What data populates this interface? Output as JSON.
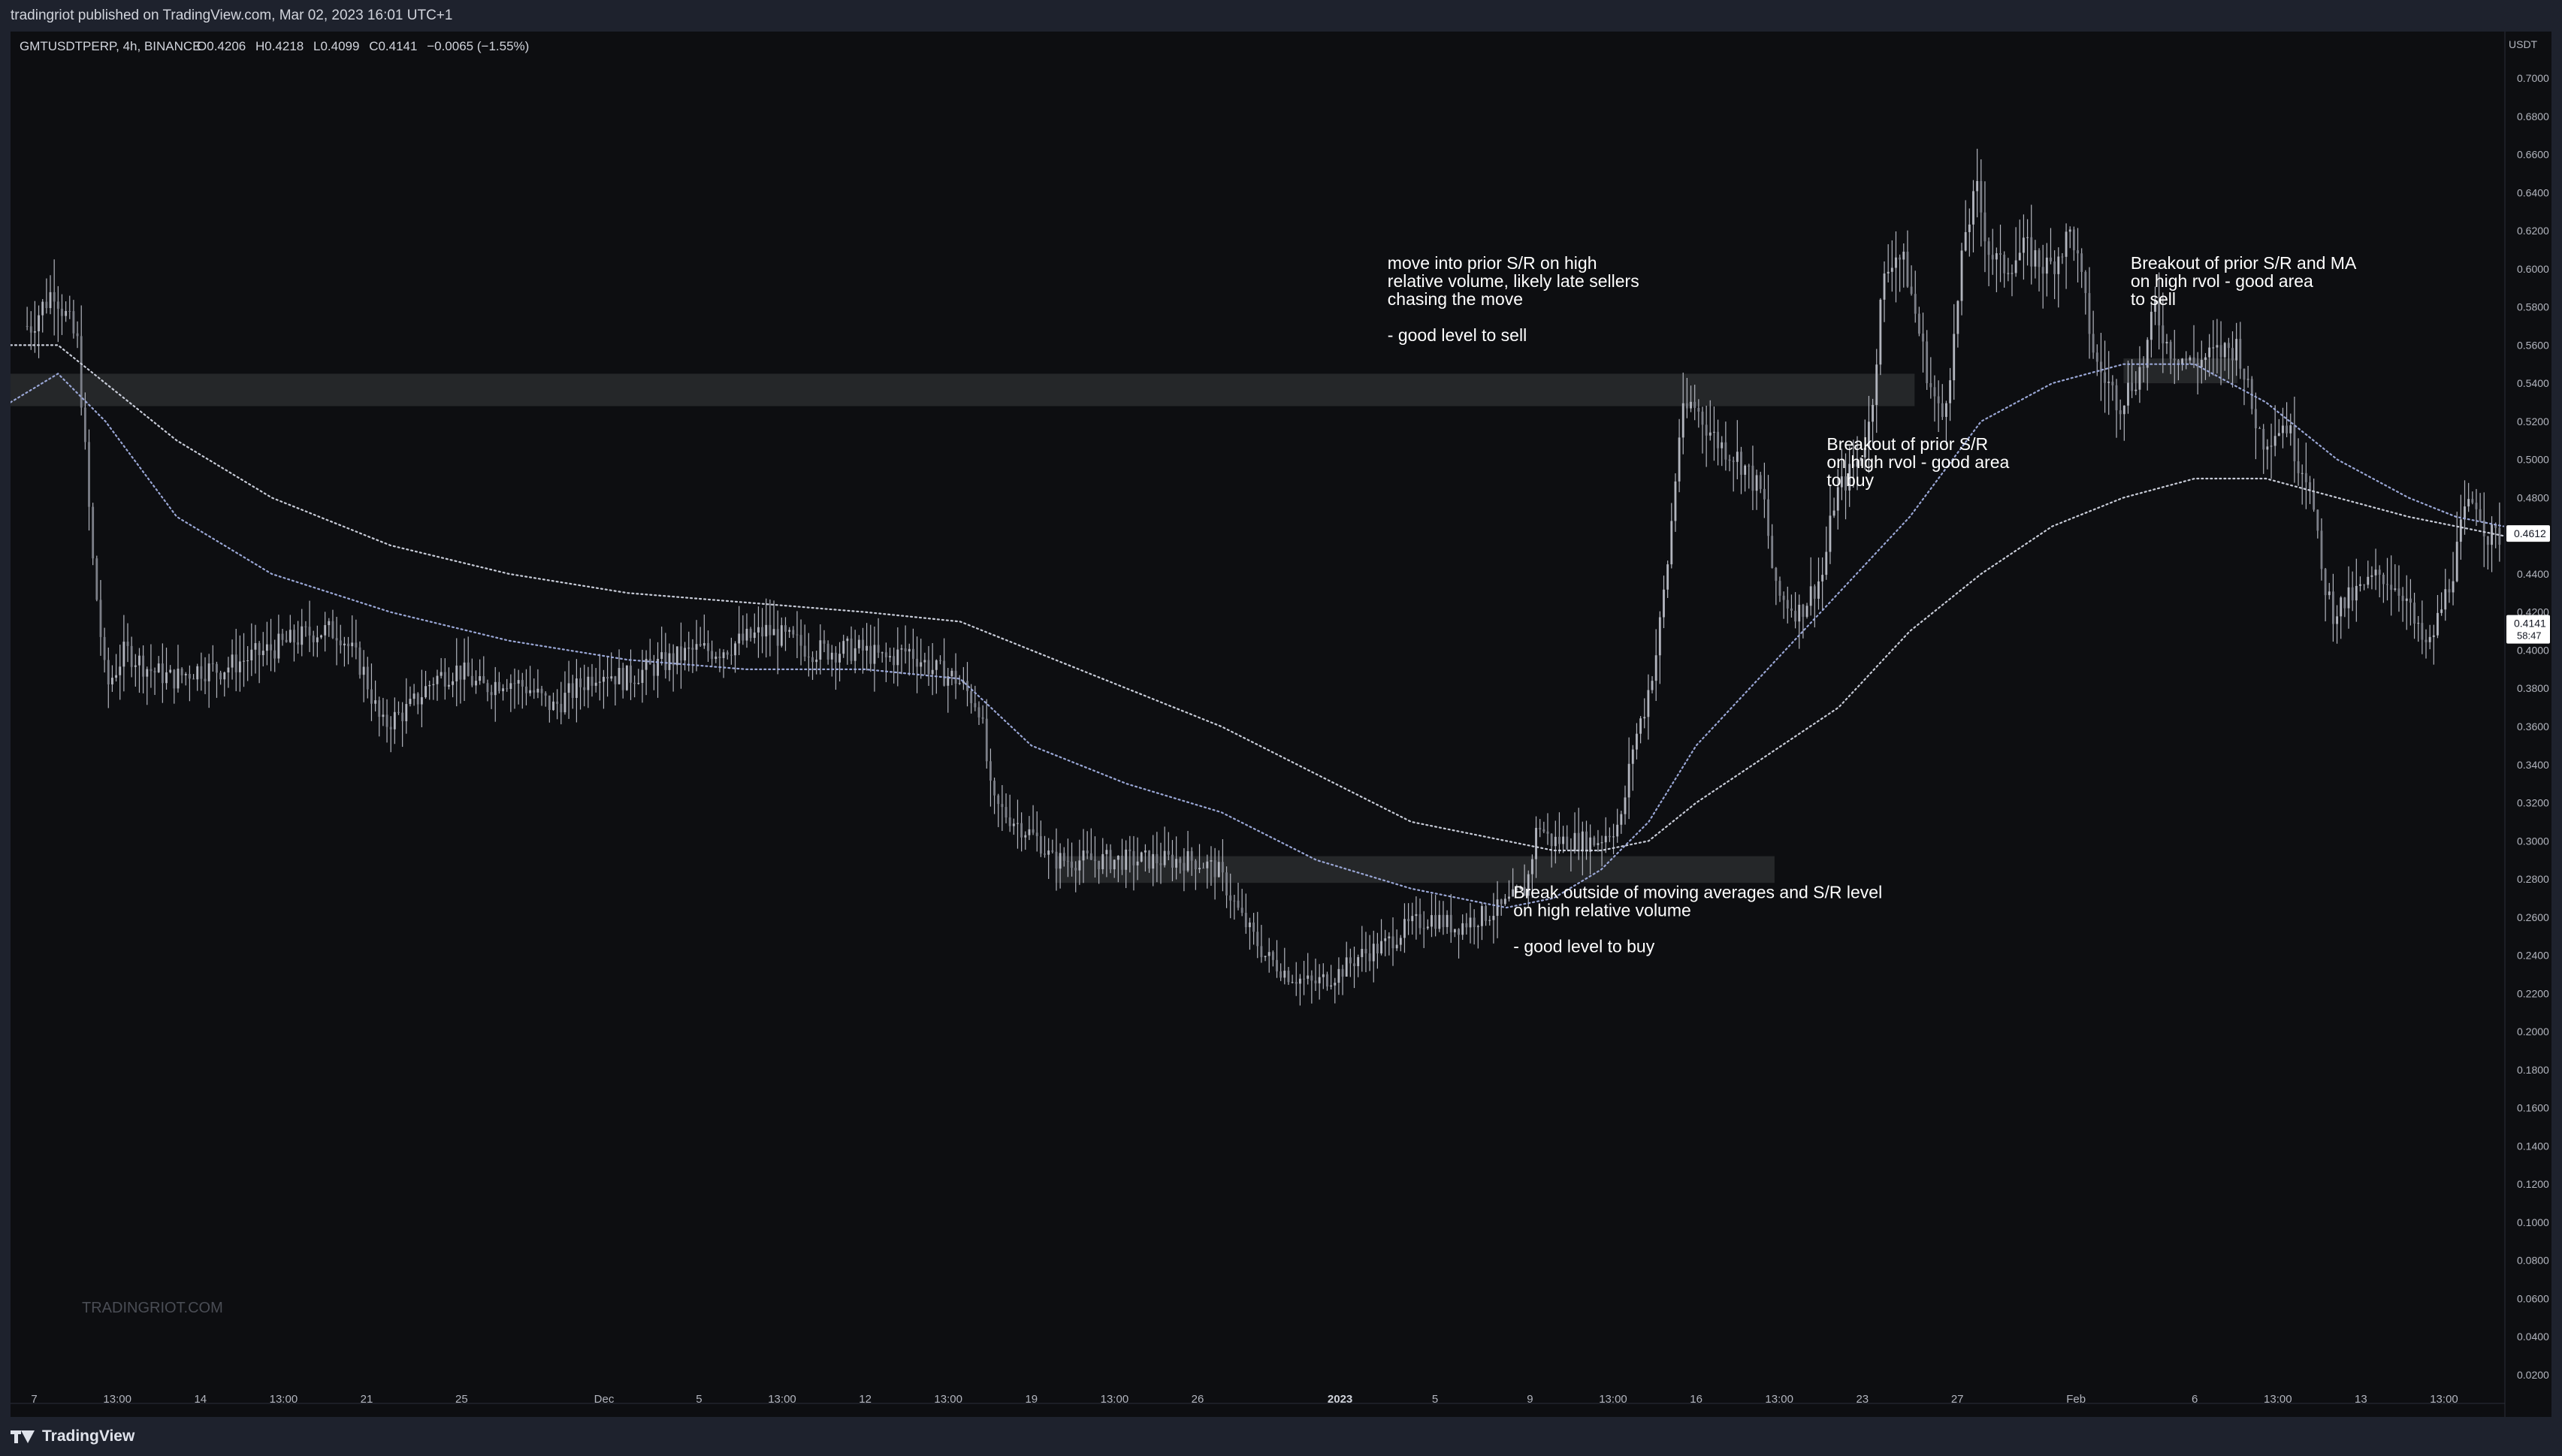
{
  "header": {
    "published": "tradingriot published on TradingView.com, Mar 02, 2023 16:01 UTC+1"
  },
  "legend": {
    "symbol": "GMTUSDTPERP, 4h, BINANCE",
    "o_label": "O",
    "o": "0.4206",
    "h_label": "H",
    "h": "0.4218",
    "l_label": "L",
    "l": "0.4099",
    "c_label": "C",
    "c": "0.4141",
    "change": "−0.0065 (−1.55%)"
  },
  "watermark": "TRADINGRIOT.COM",
  "footer": {
    "brand": "TradingView"
  },
  "colors": {
    "background": "#0d0e11",
    "candles": "#b2b5be",
    "ma_fast": "#9aa7d6",
    "ma_slow": "#c8ccd8",
    "zone": "#2a2b2e",
    "text": "#ffffff",
    "axis_text": "#b2b5be"
  },
  "chart_data": {
    "type": "candlestick",
    "currency": "USDT",
    "ylim": [
      0.0,
      0.7
    ],
    "y_ticks": [
      "0.7000",
      "0.6800",
      "0.6600",
      "0.6400",
      "0.6200",
      "0.6000",
      "0.5800",
      "0.5600",
      "0.5400",
      "0.5200",
      "0.5000",
      "0.4800",
      "0.4600",
      "0.4400",
      "0.4200",
      "0.4000",
      "0.3800",
      "0.3600",
      "0.3400",
      "0.3200",
      "0.3000",
      "0.2800",
      "0.2600",
      "0.2400",
      "0.2200",
      "0.2000",
      "0.1800",
      "0.1600",
      "0.1400",
      "0.1200",
      "0.1000",
      "0.0800",
      "0.0600",
      "0.0400",
      "0.0200"
    ],
    "x_ticks": [
      {
        "label": "7",
        "pos": 0.0
      },
      {
        "label": "13:00",
        "pos": 3.5
      },
      {
        "label": "14",
        "pos": 7.0
      },
      {
        "label": "13:00",
        "pos": 10.5
      },
      {
        "label": "21",
        "pos": 14.0
      },
      {
        "label": "25",
        "pos": 18.0
      },
      {
        "label": "Dec",
        "pos": 24.0
      },
      {
        "label": "5",
        "pos": 28.0
      },
      {
        "label": "13:00",
        "pos": 31.5
      },
      {
        "label": "12",
        "pos": 35.0
      },
      {
        "label": "13:00",
        "pos": 38.5
      },
      {
        "label": "19",
        "pos": 42.0
      },
      {
        "label": "13:00",
        "pos": 45.5
      },
      {
        "label": "26",
        "pos": 49.0
      },
      {
        "label": "2023",
        "pos": 55.0
      },
      {
        "label": "5",
        "pos": 59.0
      },
      {
        "label": "9",
        "pos": 63.0
      },
      {
        "label": "13:00",
        "pos": 66.5
      },
      {
        "label": "16",
        "pos": 70.0
      },
      {
        "label": "13:00",
        "pos": 73.5
      },
      {
        "label": "23",
        "pos": 77.0
      },
      {
        "label": "27",
        "pos": 81.0
      },
      {
        "label": "Feb",
        "pos": 86.0
      },
      {
        "label": "6",
        "pos": 91.0
      },
      {
        "label": "13:00",
        "pos": 94.5
      },
      {
        "label": "13",
        "pos": 98.0
      },
      {
        "label": "13:00",
        "pos": 101.5
      }
    ],
    "x_range": [
      -1,
      104
    ],
    "price_path": [
      [
        0,
        0.57
      ],
      [
        1.0,
        0.59
      ],
      [
        2.0,
        0.56
      ],
      [
        2.6,
        0.45
      ],
      [
        3.2,
        0.38
      ],
      [
        4.0,
        0.4
      ],
      [
        5.0,
        0.39
      ],
      [
        6.0,
        0.385
      ],
      [
        7.0,
        0.39
      ],
      [
        8.0,
        0.39
      ],
      [
        9.0,
        0.395
      ],
      [
        10.0,
        0.4
      ],
      [
        11.0,
        0.405
      ],
      [
        12.0,
        0.41
      ],
      [
        13.0,
        0.41
      ],
      [
        14.0,
        0.39
      ],
      [
        14.8,
        0.36
      ],
      [
        16.0,
        0.37
      ],
      [
        17.0,
        0.385
      ],
      [
        18.0,
        0.39
      ],
      [
        19.0,
        0.38
      ],
      [
        20.0,
        0.385
      ],
      [
        21.0,
        0.38
      ],
      [
        22.0,
        0.37
      ],
      [
        23.0,
        0.38
      ],
      [
        24.0,
        0.39
      ],
      [
        25.0,
        0.385
      ],
      [
        26.0,
        0.39
      ],
      [
        27.0,
        0.395
      ],
      [
        28.0,
        0.4
      ],
      [
        29.0,
        0.4
      ],
      [
        30.0,
        0.405
      ],
      [
        31.0,
        0.41
      ],
      [
        32.0,
        0.405
      ],
      [
        33.0,
        0.4
      ],
      [
        34.0,
        0.4
      ],
      [
        35.0,
        0.4
      ],
      [
        36.0,
        0.395
      ],
      [
        37.0,
        0.4
      ],
      [
        38.0,
        0.39
      ],
      [
        39.0,
        0.385
      ],
      [
        40.0,
        0.37
      ],
      [
        40.5,
        0.32
      ],
      [
        41.5,
        0.31
      ],
      [
        42.5,
        0.3
      ],
      [
        43.0,
        0.29
      ],
      [
        44.0,
        0.29
      ],
      [
        45.0,
        0.29
      ],
      [
        46.0,
        0.29
      ],
      [
        47.0,
        0.29
      ],
      [
        48.0,
        0.29
      ],
      [
        49.0,
        0.29
      ],
      [
        50.0,
        0.285
      ],
      [
        51.0,
        0.26
      ],
      [
        52.0,
        0.24
      ],
      [
        53.0,
        0.23
      ],
      [
        54.0,
        0.225
      ],
      [
        55.0,
        0.23
      ],
      [
        56.0,
        0.24
      ],
      [
        57.0,
        0.245
      ],
      [
        58.0,
        0.255
      ],
      [
        59.0,
        0.26
      ],
      [
        60.0,
        0.255
      ],
      [
        61.0,
        0.26
      ],
      [
        62.0,
        0.265
      ],
      [
        63.0,
        0.275
      ],
      [
        63.5,
        0.31
      ],
      [
        64.0,
        0.3
      ],
      [
        65.0,
        0.3
      ],
      [
        66.0,
        0.3
      ],
      [
        67.0,
        0.31
      ],
      [
        67.5,
        0.35
      ],
      [
        68.0,
        0.37
      ],
      [
        68.5,
        0.4
      ],
      [
        69.0,
        0.45
      ],
      [
        69.5,
        0.52
      ],
      [
        70.0,
        0.53
      ],
      [
        71.0,
        0.51
      ],
      [
        72.0,
        0.5
      ],
      [
        73.0,
        0.48
      ],
      [
        73.5,
        0.43
      ],
      [
        74.5,
        0.42
      ],
      [
        75.5,
        0.44
      ],
      [
        76.0,
        0.48
      ],
      [
        77.0,
        0.5
      ],
      [
        77.5,
        0.52
      ],
      [
        78.0,
        0.59
      ],
      [
        78.5,
        0.61
      ],
      [
        79.0,
        0.6
      ],
      [
        79.5,
        0.57
      ],
      [
        80.0,
        0.54
      ],
      [
        80.5,
        0.52
      ],
      [
        81.0,
        0.56
      ],
      [
        81.5,
        0.62
      ],
      [
        82.0,
        0.64
      ],
      [
        82.5,
        0.61
      ],
      [
        83.0,
        0.6
      ],
      [
        84.0,
        0.61
      ],
      [
        85.0,
        0.6
      ],
      [
        86.0,
        0.62
      ],
      [
        87.0,
        0.55
      ],
      [
        88.0,
        0.53
      ],
      [
        89.0,
        0.55
      ],
      [
        89.5,
        0.58
      ],
      [
        90.0,
        0.56
      ],
      [
        91.0,
        0.55
      ],
      [
        92.0,
        0.555
      ],
      [
        93.0,
        0.56
      ],
      [
        93.5,
        0.53
      ],
      [
        94.0,
        0.51
      ],
      [
        95.0,
        0.52
      ],
      [
        95.5,
        0.5
      ],
      [
        96.0,
        0.49
      ],
      [
        96.5,
        0.44
      ],
      [
        97.0,
        0.42
      ],
      [
        98.0,
        0.43
      ],
      [
        99.0,
        0.44
      ],
      [
        100.0,
        0.43
      ],
      [
        100.5,
        0.41
      ],
      [
        101.0,
        0.4
      ],
      [
        101.5,
        0.42
      ],
      [
        102.0,
        0.44
      ],
      [
        102.5,
        0.47
      ],
      [
        103.0,
        0.48
      ],
      [
        103.5,
        0.46
      ],
      [
        104.0,
        0.46
      ]
    ],
    "ma_fast": [
      [
        -1,
        0.53
      ],
      [
        1,
        0.545
      ],
      [
        3,
        0.52
      ],
      [
        6,
        0.47
      ],
      [
        10,
        0.44
      ],
      [
        15,
        0.42
      ],
      [
        20,
        0.405
      ],
      [
        25,
        0.395
      ],
      [
        30,
        0.39
      ],
      [
        35,
        0.39
      ],
      [
        39,
        0.385
      ],
      [
        42,
        0.35
      ],
      [
        46,
        0.33
      ],
      [
        50,
        0.315
      ],
      [
        54,
        0.29
      ],
      [
        58,
        0.275
      ],
      [
        62,
        0.265
      ],
      [
        64,
        0.27
      ],
      [
        66,
        0.285
      ],
      [
        68,
        0.31
      ],
      [
        70,
        0.35
      ],
      [
        73,
        0.39
      ],
      [
        76,
        0.43
      ],
      [
        79,
        0.47
      ],
      [
        82,
        0.52
      ],
      [
        85,
        0.54
      ],
      [
        88,
        0.55
      ],
      [
        91,
        0.55
      ],
      [
        94,
        0.53
      ],
      [
        97,
        0.5
      ],
      [
        100,
        0.48
      ],
      [
        102,
        0.47
      ],
      [
        104,
        0.465
      ]
    ],
    "ma_slow": [
      [
        -1,
        0.56
      ],
      [
        1,
        0.56
      ],
      [
        3,
        0.54
      ],
      [
        6,
        0.51
      ],
      [
        10,
        0.48
      ],
      [
        15,
        0.455
      ],
      [
        20,
        0.44
      ],
      [
        25,
        0.43
      ],
      [
        30,
        0.425
      ],
      [
        35,
        0.42
      ],
      [
        39,
        0.415
      ],
      [
        42,
        0.4
      ],
      [
        46,
        0.38
      ],
      [
        50,
        0.36
      ],
      [
        54,
        0.335
      ],
      [
        58,
        0.31
      ],
      [
        62,
        0.3
      ],
      [
        64,
        0.295
      ],
      [
        66,
        0.295
      ],
      [
        68,
        0.3
      ],
      [
        70,
        0.32
      ],
      [
        73,
        0.345
      ],
      [
        76,
        0.37
      ],
      [
        79,
        0.41
      ],
      [
        82,
        0.44
      ],
      [
        85,
        0.465
      ],
      [
        88,
        0.48
      ],
      [
        91,
        0.49
      ],
      [
        94,
        0.49
      ],
      [
        97,
        0.48
      ],
      [
        100,
        0.47
      ],
      [
        102,
        0.465
      ],
      [
        104,
        0.46
      ]
    ],
    "zones": [
      {
        "x0": -1,
        "x1": 79.2,
        "y0": 0.528,
        "y1": 0.545
      },
      {
        "x0": 88.0,
        "x1": 92.8,
        "y0": 0.54,
        "y1": 0.553
      },
      {
        "x0": 43.0,
        "x1": 73.3,
        "y0": 0.278,
        "y1": 0.292
      }
    ],
    "annotations": [
      {
        "x": 57.0,
        "y": 0.6,
        "lines": [
          "move into prior S/R on high",
          "relative volume, likely late sellers",
          "chasing the move",
          "",
          "- good level to sell"
        ]
      },
      {
        "x": 75.5,
        "y": 0.505,
        "lines": [
          "Breakout of prior S/R",
          "on high rvol - good area",
          "to buy"
        ]
      },
      {
        "x": 88.3,
        "y": 0.6,
        "lines": [
          "Breakout of prior S/R and MA",
          "on high rvol - good area",
          "to sell"
        ]
      },
      {
        "x": 62.3,
        "y": 0.27,
        "lines": [
          "Break outside of moving averages and S/R level",
          "on high relative volume",
          "",
          "- good level to buy"
        ]
      }
    ],
    "price_labels": [
      {
        "value": 0.4612,
        "text": "0.4612"
      },
      {
        "value": 0.4141,
        "text": "0.4141",
        "sub": "58:47"
      }
    ]
  }
}
